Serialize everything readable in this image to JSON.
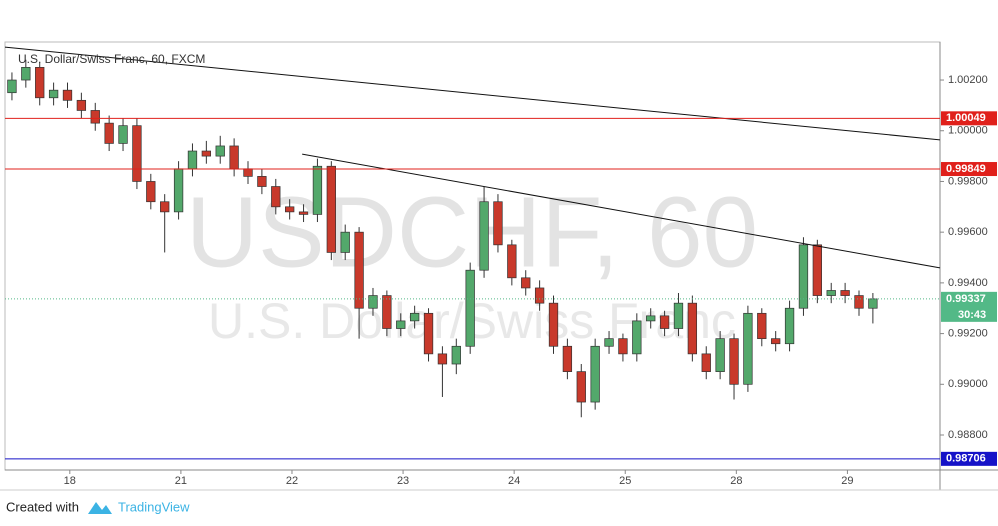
{
  "chart_data": {
    "type": "candlestick",
    "title": "U.S. Dollar/Swiss Franc, 60, FXCM",
    "watermark": "USDCHF, 60",
    "watermark_sub": "U.S. Dollar/Swiss Franc",
    "up_color": "#53a86b",
    "down_color": "#c8392b",
    "x": [
      1.5,
      4.5,
      7.5,
      10.5,
      13.5,
      16.5,
      19.5,
      22.5,
      25.5,
      28.5,
      31.5,
      34.5,
      37.5,
      40.5,
      43.5,
      46.5,
      49.5,
      52.5,
      55.5,
      58.5,
      61.5,
      64.5,
      67.5,
      70.5,
      73.5,
      76.5,
      79.5,
      82.5,
      85.5,
      88.5,
      91.5,
      94.5,
      97.5,
      100.5,
      103.5,
      106.5,
      109.5,
      112.5,
      115.5,
      118.5,
      121.5,
      124.5,
      127.5,
      130.5,
      133.5,
      136.5,
      139.5,
      142.5,
      145.5,
      148.5,
      151.5,
      154.5,
      157.5,
      160.5,
      163.5,
      166.5,
      169.5,
      172.5,
      175.5,
      178.5,
      181.5,
      184.5,
      187.5
    ],
    "open": [
      1.0015,
      1.002,
      1.0025,
      1.0013,
      1.0016,
      1.0012,
      1.0008,
      1.0003,
      0.9995,
      1.0002,
      0.998,
      0.9972,
      0.9968,
      0.9985,
      0.9992,
      0.999,
      0.9994,
      0.9985,
      0.9982,
      0.9978,
      0.997,
      0.9968,
      0.9967,
      0.9986,
      0.9952,
      0.996,
      0.993,
      0.9935,
      0.9922,
      0.9925,
      0.9928,
      0.9912,
      0.9908,
      0.9915,
      0.9945,
      0.9972,
      0.9955,
      0.9942,
      0.9938,
      0.9932,
      0.9915,
      0.9905,
      0.9893,
      0.9915,
      0.9918,
      0.9912,
      0.9925,
      0.9927,
      0.9922,
      0.9932,
      0.9912,
      0.9905,
      0.9918,
      0.99,
      0.9928,
      0.9918,
      0.9916,
      0.993,
      0.9955,
      0.9935,
      0.9937,
      0.9935,
      0.993
    ],
    "high": [
      1.0023,
      1.0028,
      1.0027,
      1.0019,
      1.0019,
      1.0015,
      1.0011,
      1.0006,
      1.0005,
      1.0005,
      0.9983,
      0.9975,
      0.9988,
      0.9995,
      0.9996,
      0.9998,
      0.9997,
      0.9988,
      0.9985,
      0.9981,
      0.9973,
      0.9971,
      0.9989,
      0.9988,
      0.9963,
      0.9962,
      0.9938,
      0.9937,
      0.9928,
      0.9931,
      0.993,
      0.9915,
      0.9918,
      0.9948,
      0.9978,
      0.9975,
      0.9957,
      0.9945,
      0.9941,
      0.9935,
      0.9918,
      0.9908,
      0.9918,
      0.9921,
      0.992,
      0.9928,
      0.993,
      0.9929,
      0.9936,
      0.9935,
      0.9915,
      0.9921,
      0.992,
      0.9931,
      0.993,
      0.9921,
      0.9933,
      0.9958,
      0.9957,
      0.994,
      0.994,
      0.9937,
      0.9936
    ],
    "low": [
      1.0012,
      1.0017,
      1.001,
      1.001,
      1.0009,
      1.0005,
      1.0,
      0.9992,
      0.9992,
      0.9977,
      0.9969,
      0.9952,
      0.9965,
      0.9982,
      0.9987,
      0.9987,
      0.9982,
      0.9979,
      0.9975,
      0.9967,
      0.9965,
      0.9964,
      0.9964,
      0.9949,
      0.9949,
      0.9918,
      0.9927,
      0.9919,
      0.9919,
      0.9922,
      0.9909,
      0.9895,
      0.9904,
      0.9912,
      0.9942,
      0.9952,
      0.9939,
      0.9935,
      0.9929,
      0.9912,
      0.9902,
      0.9887,
      0.989,
      0.9912,
      0.9909,
      0.9909,
      0.9922,
      0.9919,
      0.9919,
      0.9909,
      0.9902,
      0.9902,
      0.9894,
      0.9897,
      0.9915,
      0.9913,
      0.9913,
      0.9927,
      0.9932,
      0.9932,
      0.9932,
      0.9927,
      0.9924
    ],
    "close": [
      1.002,
      1.0025,
      1.0013,
      1.0016,
      1.0012,
      1.0008,
      1.0003,
      0.9995,
      1.0002,
      0.998,
      0.9972,
      0.9968,
      0.9985,
      0.9992,
      0.999,
      0.9994,
      0.9985,
      0.9982,
      0.9978,
      0.997,
      0.9968,
      0.9967,
      0.9986,
      0.9952,
      0.996,
      0.993,
      0.9935,
      0.9922,
      0.9925,
      0.9928,
      0.9912,
      0.9908,
      0.9915,
      0.9945,
      0.9972,
      0.9955,
      0.9942,
      0.9938,
      0.9932,
      0.9915,
      0.9905,
      0.9893,
      0.9915,
      0.9918,
      0.9912,
      0.9925,
      0.9927,
      0.9922,
      0.9932,
      0.9912,
      0.9905,
      0.9918,
      0.99,
      0.9928,
      0.9918,
      0.9916,
      0.993,
      0.9955,
      0.9935,
      0.9937,
      0.9935,
      0.993,
      0.99337
    ],
    "xlim": [
      0,
      202
    ],
    "xticks": [
      {
        "value": 14,
        "label": "18"
      },
      {
        "value": 38,
        "label": "21"
      },
      {
        "value": 62,
        "label": "22"
      },
      {
        "value": 86,
        "label": "23"
      },
      {
        "value": 110,
        "label": "24"
      },
      {
        "value": 134,
        "label": "25"
      },
      {
        "value": 158,
        "label": "28"
      },
      {
        "value": 182,
        "label": "29"
      }
    ],
    "ylim": [
      0.98662,
      1.0035
    ],
    "yticks": [
      {
        "value": 1.002,
        "label": "1.00200"
      },
      {
        "value": 1.0,
        "label": "1.00000"
      },
      {
        "value": 0.998,
        "label": "0.99800"
      },
      {
        "value": 0.996,
        "label": "0.99600"
      },
      {
        "value": 0.994,
        "label": "0.99400"
      },
      {
        "value": 0.992,
        "label": "0.99200"
      },
      {
        "value": 0.99,
        "label": "0.99000"
      },
      {
        "value": 0.988,
        "label": "0.98800"
      }
    ],
    "levels": [
      {
        "value": 1.00049,
        "color": "#e0201b"
      },
      {
        "value": 0.99849,
        "color": "#e0201b"
      },
      {
        "value": 0.98706,
        "color": "#1512c8"
      }
    ],
    "current_price": 0.99337,
    "current_color": "#53b987",
    "countdown": "30:43",
    "trendlines": [
      {
        "x": [
          0,
          202
        ],
        "y": [
          1.0033,
          0.99964
        ]
      },
      {
        "x": [
          64.2,
          202
        ],
        "y": [
          0.99908,
          0.99459
        ]
      }
    ]
  },
  "footer": {
    "created": "Created with",
    "brand": "TradingView"
  }
}
